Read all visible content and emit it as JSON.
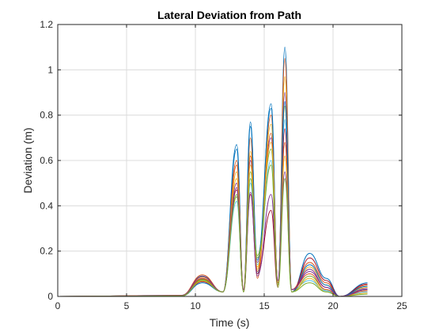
{
  "chart_data": {
    "type": "line",
    "title": "Lateral Deviation from Path",
    "xlabel": "Time (s)",
    "ylabel": "Deviation (m)",
    "xlim": [
      0,
      25
    ],
    "ylim": [
      0,
      1.2
    ],
    "xticks": [
      0,
      5,
      10,
      15,
      20,
      25
    ],
    "xtick_labels": [
      "0",
      "5",
      "10",
      "15",
      "20",
      "25"
    ],
    "yticks": [
      0,
      0.2,
      0.4,
      0.6,
      0.8,
      1,
      1.2
    ],
    "ytick_labels": [
      "0",
      "0.2",
      "0.4",
      "0.6",
      "0.8",
      "1",
      "1.2"
    ],
    "grid": true,
    "legend": "none",
    "colors": [
      "#0072BD",
      "#D95319",
      "#EDB120",
      "#7E2F8E",
      "#77AC30",
      "#4DBEEE",
      "#A2142F"
    ],
    "series": [
      {
        "x": [
          0,
          9,
          10.5,
          12,
          13,
          13.5,
          14,
          14.5,
          15.5,
          16,
          16.5,
          17,
          18.3,
          19.5,
          20.5,
          22.5
        ],
        "y": [
          0,
          0.005,
          0.09,
          0.02,
          0.67,
          0.02,
          0.77,
          0.1,
          0.85,
          0.05,
          1.1,
          0.02,
          0.19,
          0.08,
          0,
          0.06
        ]
      },
      {
        "x": [
          0,
          9,
          10.5,
          12,
          13,
          13.5,
          14,
          14.5,
          15.5,
          16,
          16.5,
          17,
          18.3,
          19.5,
          20.5,
          22.5
        ],
        "y": [
          0,
          0.005,
          0.095,
          0.02,
          0.6,
          0.03,
          0.7,
          0.08,
          0.8,
          0.06,
          1.05,
          0.03,
          0.15,
          0.06,
          0,
          0.05
        ]
      },
      {
        "x": [
          0,
          9,
          10.5,
          12,
          13,
          13.5,
          14,
          14.5,
          15.5,
          16,
          16.5,
          17,
          18.3,
          19.5,
          20.5,
          22.5
        ],
        "y": [
          0,
          0.004,
          0.085,
          0.02,
          0.55,
          0.02,
          0.64,
          0.12,
          0.76,
          0.04,
          0.97,
          0.02,
          0.13,
          0.05,
          0,
          0.04
        ]
      },
      {
        "x": [
          0,
          9,
          10.5,
          12,
          13,
          13.5,
          14,
          14.5,
          15.5,
          16,
          16.5,
          17,
          18.3,
          19.5,
          20.5,
          22.5
        ],
        "y": [
          0,
          0.004,
          0.08,
          0.02,
          0.5,
          0.03,
          0.6,
          0.15,
          0.7,
          0.07,
          0.9,
          0.03,
          0.11,
          0.04,
          0,
          0.035
        ]
      },
      {
        "x": [
          0,
          9,
          10.5,
          12,
          13,
          13.5,
          14,
          14.5,
          15.5,
          16,
          16.5,
          17,
          18.3,
          19.5,
          20.5,
          22.5
        ],
        "y": [
          0,
          0.003,
          0.075,
          0.02,
          0.45,
          0.02,
          0.55,
          0.18,
          0.65,
          0.05,
          0.84,
          0.02,
          0.09,
          0.03,
          0,
          0.03
        ]
      },
      {
        "x": [
          0,
          9,
          10.5,
          12,
          13,
          13.5,
          14,
          14.5,
          15.5,
          16,
          16.5,
          17,
          18.3,
          19.5,
          20.5,
          22.5
        ],
        "y": [
          0,
          0.003,
          0.07,
          0.02,
          0.42,
          0.03,
          0.5,
          0.14,
          0.6,
          0.06,
          0.78,
          0.03,
          0.07,
          0.025,
          0,
          0.02
        ]
      },
      {
        "x": [
          0,
          9,
          10.5,
          12,
          13,
          13.5,
          14,
          14.5,
          15.5,
          16,
          16.5,
          17,
          18.3,
          19.5,
          20.5,
          22.5
        ],
        "y": [
          0,
          0.002,
          0.065,
          0.02,
          0.47,
          0.02,
          0.45,
          0.1,
          0.38,
          0.04,
          0.74,
          0.02,
          0.17,
          0.07,
          0,
          0.055
        ]
      },
      {
        "x": [
          0,
          9,
          10.5,
          12,
          13,
          13.5,
          14,
          14.5,
          15.5,
          16,
          16.5,
          17,
          18.3,
          19.5,
          20.5,
          22.5
        ],
        "y": [
          0,
          0.002,
          0.06,
          0.02,
          0.65,
          0.02,
          0.75,
          0.16,
          0.83,
          0.05,
          0.86,
          0.02,
          0.14,
          0.05,
          0,
          0.045
        ]
      },
      {
        "x": [
          0,
          9,
          10.5,
          12,
          13,
          13.5,
          14,
          14.5,
          15.5,
          16,
          16.5,
          17,
          18.3,
          19.5,
          20.5,
          22.5
        ],
        "y": [
          0,
          0.003,
          0.078,
          0.02,
          0.58,
          0.03,
          0.62,
          0.11,
          0.72,
          0.06,
          0.68,
          0.03,
          0.1,
          0.03,
          0,
          0.025
        ]
      },
      {
        "x": [
          0,
          9,
          10.5,
          12,
          13,
          13.5,
          14,
          14.5,
          15.5,
          16,
          16.5,
          17,
          18.3,
          19.5,
          20.5,
          22.5
        ],
        "y": [
          0,
          0.002,
          0.068,
          0.02,
          0.52,
          0.02,
          0.58,
          0.13,
          0.68,
          0.05,
          0.62,
          0.02,
          0.08,
          0.02,
          0,
          0.015
        ]
      },
      {
        "x": [
          0,
          9,
          10.5,
          12,
          13,
          13.5,
          14,
          14.5,
          15.5,
          16,
          16.5,
          17,
          18.3,
          19.5,
          20.5,
          22.5
        ],
        "y": [
          0,
          0.003,
          0.088,
          0.02,
          0.48,
          0.03,
          0.46,
          0.09,
          0.45,
          0.07,
          0.55,
          0.03,
          0.12,
          0.04,
          0,
          0.03
        ]
      },
      {
        "x": [
          0,
          9,
          10.5,
          12,
          13,
          13.5,
          14,
          14.5,
          15.5,
          16,
          16.5,
          17,
          18.3,
          19.5,
          20.5,
          22.5
        ],
        "y": [
          0,
          0.002,
          0.072,
          0.02,
          0.44,
          0.02,
          0.52,
          0.17,
          0.58,
          0.04,
          0.52,
          0.02,
          0.06,
          0.02,
          0,
          0.01
        ]
      }
    ]
  }
}
